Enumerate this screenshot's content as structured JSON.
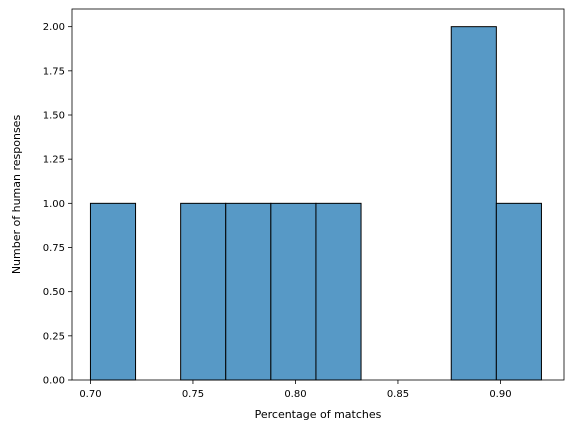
{
  "chart_data": {
    "type": "bar",
    "histogram": true,
    "title": "",
    "xlabel": "Percentage of matches",
    "ylabel": "Number of human responses",
    "xlim": [
      0.691,
      0.931
    ],
    "ylim": [
      0,
      2.1
    ],
    "x_ticks": [
      "0.70",
      "0.75",
      "0.80",
      "0.85",
      "0.90"
    ],
    "x_tick_values": [
      0.7,
      0.75,
      0.8,
      0.85,
      0.9
    ],
    "y_ticks": [
      "0.00",
      "0.25",
      "0.50",
      "0.75",
      "1.00",
      "1.25",
      "1.50",
      "1.75",
      "2.00"
    ],
    "y_tick_values": [
      0,
      0.25,
      0.5,
      0.75,
      1.0,
      1.25,
      1.5,
      1.75,
      2.0
    ],
    "bins": [
      {
        "x0": 0.7,
        "x1": 0.722,
        "count": 1
      },
      {
        "x0": 0.722,
        "x1": 0.744,
        "count": 0
      },
      {
        "x0": 0.744,
        "x1": 0.766,
        "count": 1
      },
      {
        "x0": 0.766,
        "x1": 0.788,
        "count": 1
      },
      {
        "x0": 0.788,
        "x1": 0.81,
        "count": 1
      },
      {
        "x0": 0.81,
        "x1": 0.832,
        "count": 1
      },
      {
        "x0": 0.832,
        "x1": 0.854,
        "count": 0
      },
      {
        "x0": 0.854,
        "x1": 0.876,
        "count": 0
      },
      {
        "x0": 0.876,
        "x1": 0.898,
        "count": 2
      },
      {
        "x0": 0.898,
        "x1": 0.92,
        "count": 1
      }
    ],
    "bar_color": "#5799c6",
    "edge_color": "#000000",
    "grid": false,
    "legend": "none"
  }
}
